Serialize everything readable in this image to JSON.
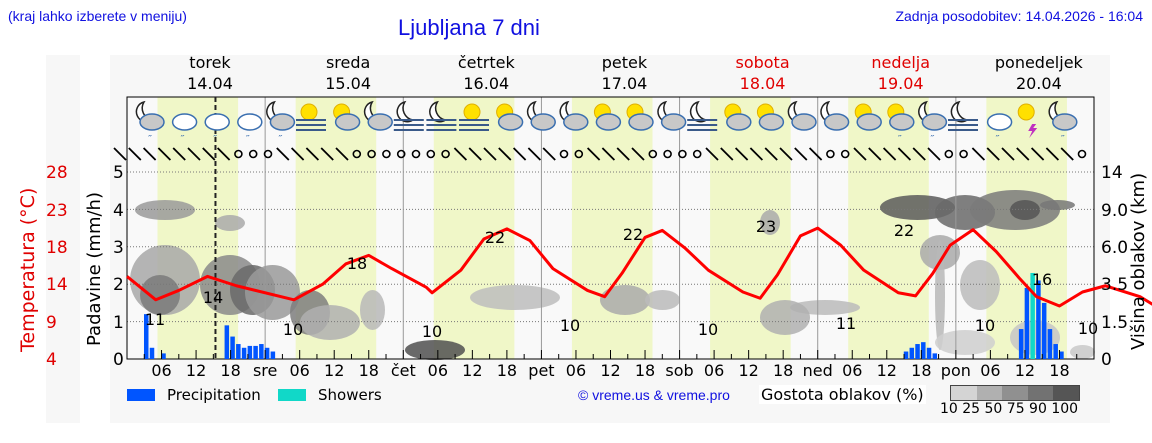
{
  "header": {
    "hint": "(kraj lahko izberete v meniju)",
    "title": "Ljubljana 7 dni",
    "updated": "Zadnja posodobitev: 14.04.2026 - 16:04"
  },
  "days": [
    {
      "name": "torek",
      "date": "14.04",
      "weekend": false
    },
    {
      "name": "sreda",
      "date": "15.04",
      "weekend": false
    },
    {
      "name": "četrtek",
      "date": "16.04",
      "weekend": false
    },
    {
      "name": "petek",
      "date": "17.04",
      "weekend": false
    },
    {
      "name": "sobota",
      "date": "18.04",
      "weekend": true
    },
    {
      "name": "nedelja",
      "date": "19.04",
      "weekend": true
    },
    {
      "name": "ponedeljek",
      "date": "20.04",
      "weekend": false
    }
  ],
  "axes": {
    "left_temp_label": "Temperatura (°C)",
    "left_precip_label": "Padavine (mm/h)",
    "right_label": "Višina oblakov (km)",
    "temp_ticks": [
      "28",
      "23",
      "18",
      "14",
      "9",
      "4"
    ],
    "precip_ticks": [
      "5",
      "4",
      "3",
      "2",
      "1",
      "0"
    ],
    "cloud_ticks": [
      "14",
      "9.0",
      "6.0",
      "3.5",
      "1.5",
      "0"
    ],
    "x_ticks": [
      "06",
      "12",
      "18",
      "sre",
      "06",
      "12",
      "18",
      "čet",
      "06",
      "12",
      "18",
      "pet",
      "06",
      "12",
      "18",
      "sob",
      "06",
      "12",
      "18",
      "ned",
      "06",
      "12",
      "18",
      "pon",
      "06",
      "12",
      "18"
    ]
  },
  "legend": {
    "precipitation": "Precipitation",
    "showers": "Showers",
    "copyright": "© vreme.us & vreme.pro",
    "density_label": "Gostota oblakov (%)",
    "density_ticks": "10  25  50  75  90 100"
  },
  "colors": {
    "precipitation": "#0055ff",
    "showers": "#11d8c8",
    "temperature": "#ff0000",
    "daylight": "#f0f7c8",
    "title": "#1010e0",
    "weekend": "#e00000"
  },
  "chart_data": {
    "type": "line",
    "title": "Ljubljana 7 dni",
    "xlabel": "",
    "ylabel": "Temperatura (°C) / Padavine (mm/h)",
    "y2label": "Višina oblakov (km)",
    "temp_range": [
      4,
      28
    ],
    "precip_range": [
      0,
      5
    ],
    "cloud_height_ticks_km": [
      0,
      1.5,
      3.5,
      6.0,
      9.0,
      14
    ],
    "current_time": "14.04 16:04",
    "temperature_extremes": [
      {
        "time": "14.04 06",
        "value": 11,
        "kind": "min"
      },
      {
        "time": "14.04 15",
        "value": 14,
        "kind": "max"
      },
      {
        "time": "15.04 05",
        "value": 10,
        "kind": "min"
      },
      {
        "time": "15.04 15",
        "value": 18,
        "kind": "max"
      },
      {
        "time": "16.04 05",
        "value": 10,
        "kind": "min"
      },
      {
        "time": "16.04 15",
        "value": 22,
        "kind": "max"
      },
      {
        "time": "17.04 05",
        "value": 10,
        "kind": "min"
      },
      {
        "time": "17.04 15",
        "value": 22,
        "kind": "max"
      },
      {
        "time": "18.04 05",
        "value": 10,
        "kind": "min"
      },
      {
        "time": "18.04 15",
        "value": 23,
        "kind": "max"
      },
      {
        "time": "19.04 05",
        "value": 11,
        "kind": "min"
      },
      {
        "time": "19.04 15",
        "value": 22,
        "kind": "max"
      },
      {
        "time": "20.04 05",
        "value": 10,
        "kind": "min"
      },
      {
        "time": "20.04 15",
        "value": 16,
        "kind": "max"
      },
      {
        "time": "21.04 00",
        "value": 10,
        "kind": "end"
      }
    ],
    "temperature_series": [
      [
        0,
        14.6
      ],
      [
        5,
        11.6
      ],
      [
        9,
        12.8
      ],
      [
        14,
        14.6
      ],
      [
        19,
        13.4
      ],
      [
        29,
        11.6
      ],
      [
        34,
        13.6
      ],
      [
        38,
        16.2
      ],
      [
        42,
        17.3
      ],
      [
        46,
        15.6
      ],
      [
        52,
        13.2
      ],
      [
        53,
        12.5
      ],
      [
        58,
        15.4
      ],
      [
        62,
        19.4
      ],
      [
        66,
        20.7
      ],
      [
        70,
        19.2
      ],
      [
        74,
        15.6
      ],
      [
        80,
        12.8
      ],
      [
        83,
        12.0
      ],
      [
        86,
        15.0
      ],
      [
        90,
        19.6
      ],
      [
        93,
        20.5
      ],
      [
        97,
        18.2
      ],
      [
        101,
        15.4
      ],
      [
        107,
        12.6
      ],
      [
        110,
        11.8
      ],
      [
        113,
        14.8
      ],
      [
        117,
        19.8
      ],
      [
        120,
        20.8
      ],
      [
        124,
        18.6
      ],
      [
        128,
        15.4
      ],
      [
        134,
        12.5
      ],
      [
        137,
        12.1
      ],
      [
        140,
        15.0
      ],
      [
        143,
        18.6
      ],
      [
        147,
        20.6
      ],
      [
        151,
        17.8
      ],
      [
        155,
        14.4
      ],
      [
        158,
        12.0
      ],
      [
        162,
        10.8
      ],
      [
        166,
        12.6
      ],
      [
        170,
        13.4
      ],
      [
        176,
        12.0
      ],
      [
        180,
        10.2
      ]
    ],
    "precipitation_series": [
      {
        "time": "14.04 04",
        "mm": 1.2
      },
      {
        "time": "14.04 05",
        "mm": 0.3
      },
      {
        "time": "14.04 07",
        "mm": 0.15
      },
      {
        "time": "14.04 18",
        "mm": 0.9
      },
      {
        "time": "14.04 19",
        "mm": 0.6
      },
      {
        "time": "14.04 20",
        "mm": 0.4
      },
      {
        "time": "14.04 21",
        "mm": 0.3
      },
      {
        "time": "14.04 22",
        "mm": 0.35
      },
      {
        "time": "14.04 23",
        "mm": 0.35
      },
      {
        "time": "15.04 00",
        "mm": 0.4
      },
      {
        "time": "15.04 01",
        "mm": 0.3
      },
      {
        "time": "15.04 02",
        "mm": 0.2
      },
      {
        "time": "19.04 16",
        "mm": 0.2
      },
      {
        "time": "19.04 17",
        "mm": 0.3
      },
      {
        "time": "19.04 18",
        "mm": 0.4
      },
      {
        "time": "19.04 19",
        "mm": 0.45
      },
      {
        "time": "19.04 20",
        "mm": 0.3
      },
      {
        "time": "19.04 21",
        "mm": 0.15
      },
      {
        "time": "20.04 12",
        "mm": 0.8
      },
      {
        "time": "20.04 13",
        "mm": 1.9
      },
      {
        "time": "20.04 14",
        "mm": 2.3,
        "showers": true
      },
      {
        "time": "20.04 15",
        "mm": 2.1
      },
      {
        "time": "20.04 16",
        "mm": 1.5
      },
      {
        "time": "20.04 17",
        "mm": 0.8
      },
      {
        "time": "20.04 18",
        "mm": 0.4
      },
      {
        "time": "20.04 19",
        "mm": 0.2
      }
    ],
    "cloud_density_legend": [
      10,
      25,
      50,
      75,
      90,
      100
    ]
  }
}
